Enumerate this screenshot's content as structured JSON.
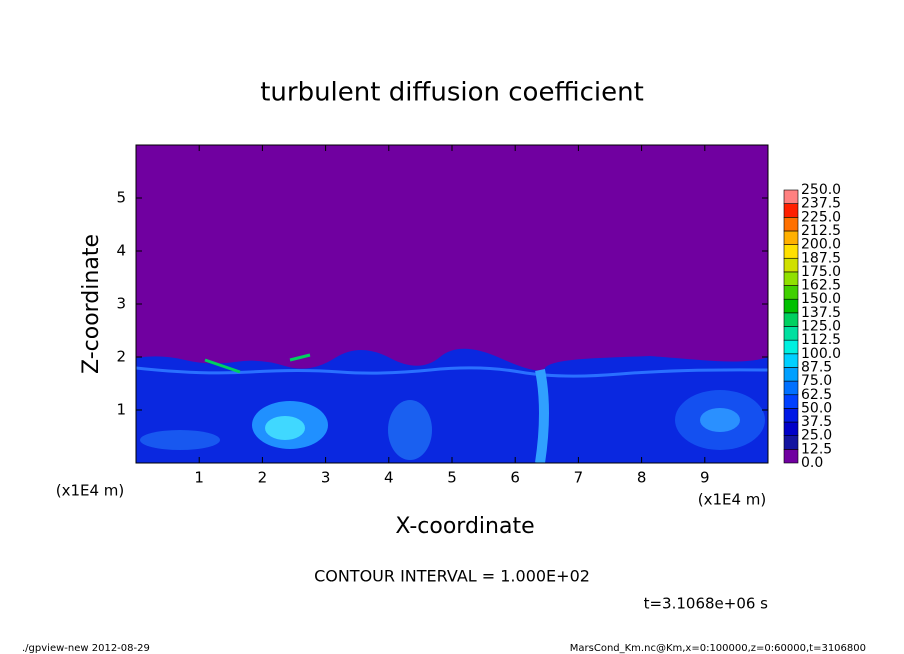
{
  "chart_data": {
    "type": "contour",
    "title": "turbulent diffusion coefficient",
    "xlabel": "X-coordinate",
    "ylabel": "Z-coordinate",
    "x_unit": "(x1E4 m)",
    "xlim": [
      0,
      10
    ],
    "xticks": [
      1,
      2,
      3,
      4,
      5,
      6,
      7,
      8,
      9
    ],
    "ylim": [
      0,
      6
    ],
    "yticks": [
      1,
      2,
      3,
      4,
      5
    ],
    "levels": [
      {
        "value": 0,
        "label": "0.0"
      },
      {
        "value": 12.5,
        "label": "12.5"
      },
      {
        "value": 25,
        "label": "25.0"
      },
      {
        "value": 37.5,
        "label": "37.5"
      },
      {
        "value": 50,
        "label": "50.0"
      },
      {
        "value": 62.5,
        "label": "62.5"
      },
      {
        "value": 75,
        "label": "75.0"
      },
      {
        "value": 87.5,
        "label": "87.5"
      },
      {
        "value": 100,
        "label": "100.0"
      },
      {
        "value": 112.5,
        "label": "112.5"
      },
      {
        "value": 125,
        "label": "125.0"
      },
      {
        "value": 137.5,
        "label": "137.5"
      },
      {
        "value": 150,
        "label": "150.0"
      },
      {
        "value": 162.5,
        "label": "162.5"
      },
      {
        "value": 175,
        "label": "175.0"
      },
      {
        "value": 187.5,
        "label": "187.5"
      },
      {
        "value": 200,
        "label": "200.0"
      },
      {
        "value": 212.5,
        "label": "212.5"
      },
      {
        "value": 225,
        "label": "225.0"
      },
      {
        "value": 237.5,
        "label": "237.5"
      },
      {
        "value": 250,
        "label": "250.0"
      }
    ],
    "colors": [
      "#7000a0",
      "#1414a0",
      "#0000c8",
      "#0018e6",
      "#0040ff",
      "#0070ff",
      "#00a0ff",
      "#00d0ff",
      "#00f0e0",
      "#00e0a0",
      "#00d060",
      "#00c000",
      "#40d000",
      "#90e000",
      "#d0e000",
      "#ffe000",
      "#ffb000",
      "#ff7000",
      "#ff2000",
      "#ff8080"
    ],
    "contour_interval": "CONTOUR INTERVAL = 1.000E+02",
    "time_label": "t=3.1068e+06 s",
    "footer_left": "./gpview-new  2012-08-29",
    "footer_right": "MarsCond_Km.nc@Km,x=0:100000,z=0:60000,t=3106800"
  }
}
